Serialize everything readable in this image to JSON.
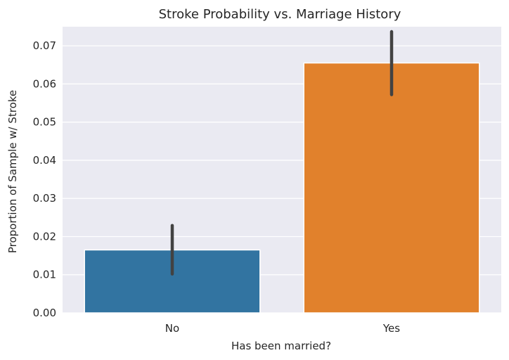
{
  "chart_data": {
    "type": "bar",
    "title": "Stroke Probability vs. Marriage History",
    "xlabel": "Has been married?",
    "ylabel": "Proportion of Sample w/ Stroke",
    "categories": [
      "No",
      "Yes"
    ],
    "values": [
      0.0165,
      0.0655
    ],
    "error_bars": [
      {
        "low": 0.0102,
        "high": 0.0229
      },
      {
        "low": 0.0572,
        "high": 0.0737
      }
    ],
    "ylim": [
      0.0,
      0.075
    ],
    "yticks": [
      "0.00",
      "0.01",
      "0.02",
      "0.03",
      "0.04",
      "0.05",
      "0.06",
      "0.07"
    ],
    "grid": true,
    "colors": {
      "plot_bg": "#EAEAF2",
      "grid": "#FFFFFF",
      "bars": [
        "#3274A1",
        "#E1812C"
      ],
      "error": "#424242"
    }
  }
}
